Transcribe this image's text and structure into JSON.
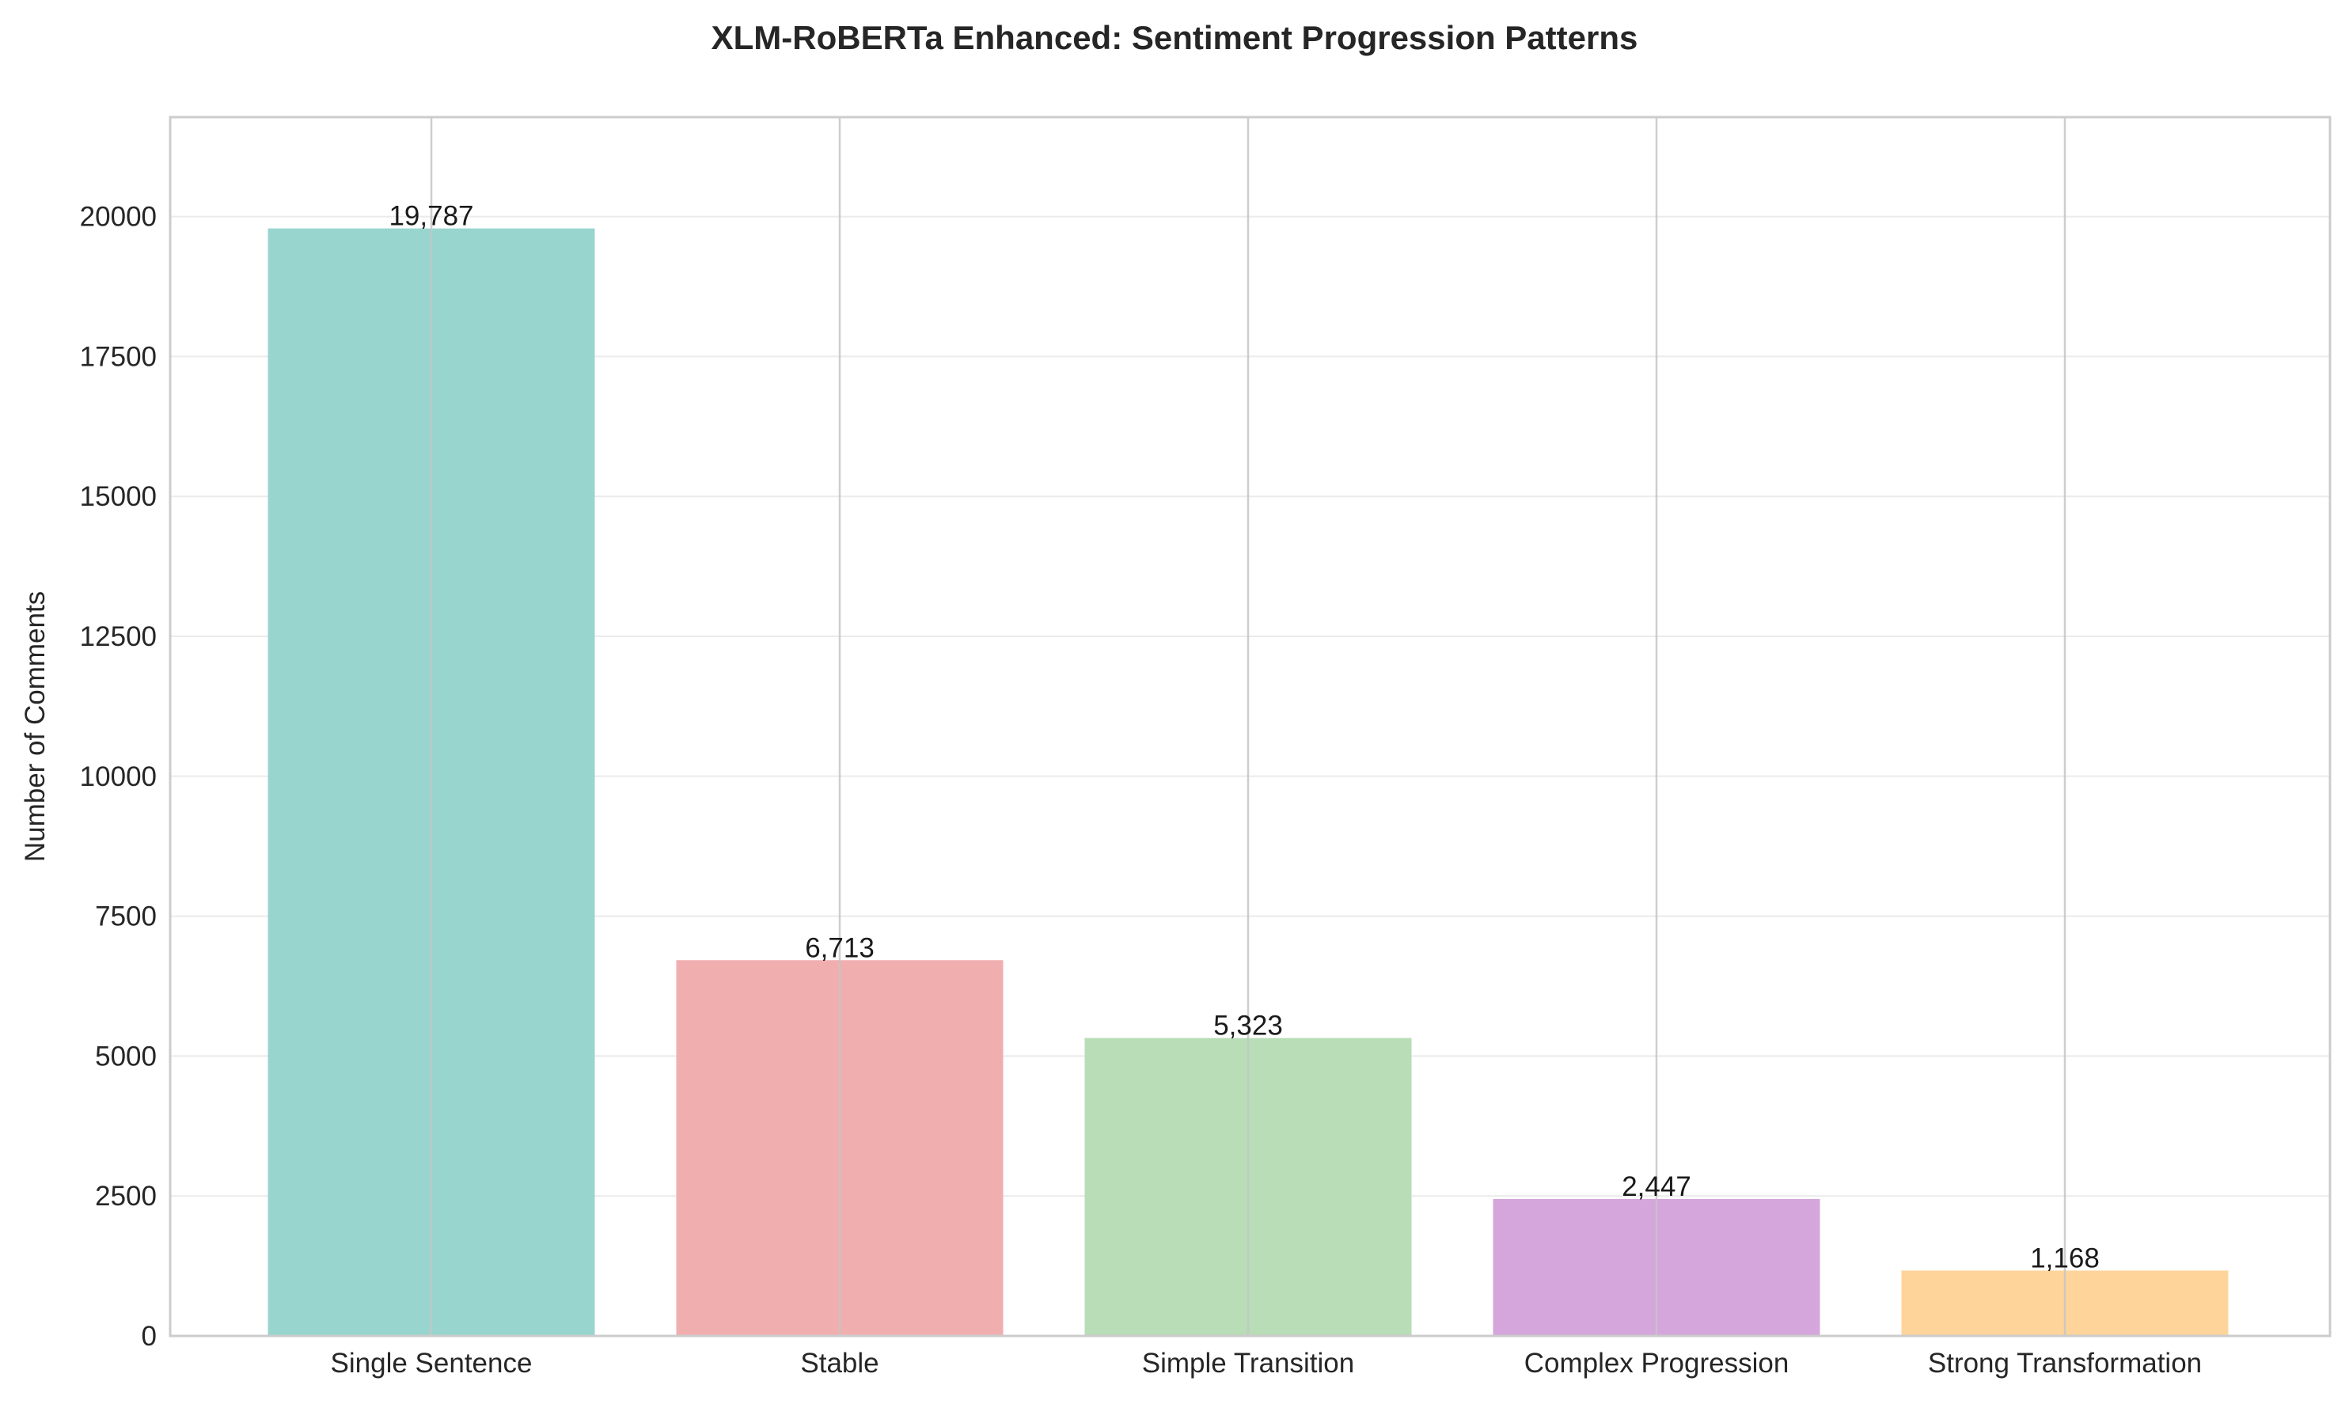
{
  "chart_data": {
    "type": "bar",
    "title": "XLM-RoBERTa Enhanced: Sentiment Progression Patterns",
    "xlabel": "",
    "ylabel": "Number of Comments",
    "categories": [
      "Single Sentence",
      "Stable",
      "Simple Transition",
      "Complex Progression",
      "Strong Transformation"
    ],
    "values": [
      19787,
      6713,
      5323,
      2447,
      1168
    ],
    "value_labels": [
      "19,787",
      "6,713",
      "5,323",
      "2,447",
      "1,168"
    ],
    "colors": [
      "#99d5cf",
      "#f1aeaf",
      "#b8ddb7",
      "#d5a6dc",
      "#fed49a"
    ],
    "ylim": [
      0,
      21776
    ],
    "yticks": [
      0,
      2500,
      5000,
      7500,
      10000,
      12500,
      15000,
      17500,
      20000
    ],
    "ytick_labels": [
      "0",
      "2500",
      "5000",
      "7500",
      "10000",
      "12500",
      "15000",
      "17500",
      "20000"
    ],
    "grid": true,
    "legend": "none"
  }
}
